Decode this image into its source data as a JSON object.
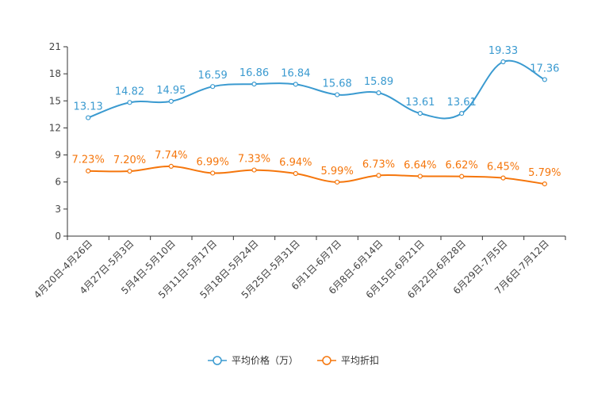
{
  "chart_data": {
    "type": "line",
    "title": "",
    "xlabel": "",
    "ylabel": "",
    "ylim": [
      0,
      21
    ],
    "yticks": [
      0,
      3,
      6,
      9,
      12,
      15,
      18,
      21
    ],
    "categories": [
      "4月20日-4月26日",
      "4月27日-5月3日",
      "5月4日-5月10日",
      "5月11日-5月17日",
      "5月18日-5月24日",
      "5月25日-5月31日",
      "6月1日-6月7日",
      "6月8日-6月14日",
      "6月15日-6月21日",
      "6月22日-6月28日",
      "6月29日-7月5日",
      "7月6日-7月12日"
    ],
    "series": [
      {
        "name": "平均价格（万）",
        "color": "#3a9ad0",
        "values": [
          13.13,
          14.82,
          14.95,
          16.59,
          16.86,
          16.84,
          15.68,
          15.89,
          13.61,
          13.61,
          19.33,
          17.36
        ],
        "labels": [
          "13.13",
          "14.82",
          "14.95",
          "16.59",
          "16.86",
          "16.84",
          "15.68",
          "15.89",
          "13.61",
          "13.61",
          "19.33",
          "17.36"
        ]
      },
      {
        "name": "平均折扣",
        "color": "#f5760c",
        "values": [
          7.23,
          7.2,
          7.74,
          6.99,
          7.33,
          6.94,
          5.99,
          6.73,
          6.64,
          6.62,
          6.45,
          5.79
        ],
        "labels": [
          "7.23%",
          "7.20%",
          "7.74%",
          "6.99%",
          "7.33%",
          "6.94%",
          "5.99%",
          "6.73%",
          "6.64%",
          "6.62%",
          "6.45%",
          "5.79%"
        ]
      }
    ],
    "grid": false,
    "legend_position": "bottom-center"
  }
}
